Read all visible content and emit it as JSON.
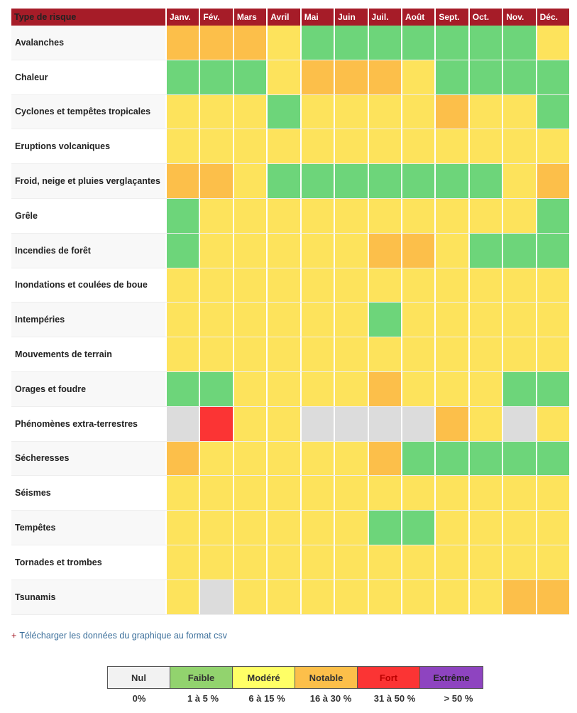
{
  "chart_data": {
    "type": "heatmap",
    "header_label": "Type de risque",
    "months": [
      "Janv.",
      "Fév.",
      "Mars",
      "Avril",
      "Mai",
      "Juin",
      "Juil.",
      "Août",
      "Sept.",
      "Oct.",
      "Nov.",
      "Déc."
    ],
    "levels": {
      "N": {
        "label": "Nul",
        "range": "0%",
        "color": "#dcdcdc"
      },
      "G": {
        "label": "Faible",
        "range": "1 à 5 %",
        "color": "#6dd57a"
      },
      "Y": {
        "label": "Modéré",
        "range": "6 à 15 %",
        "color": "#fde35c"
      },
      "O": {
        "label": "Notable",
        "range": "16 à 30 %",
        "color": "#fcbf4a"
      },
      "R": {
        "label": "Fort",
        "range": "31 à 50 %",
        "color": "#fb3434"
      },
      "X": {
        "label": "Extrême",
        "range": "> 50 %",
        "color": "#8e44c0"
      }
    },
    "rows": [
      {
        "name": "Avalanches",
        "values": [
          "O",
          "O",
          "O",
          "Y",
          "G",
          "G",
          "G",
          "G",
          "G",
          "G",
          "G",
          "Y"
        ]
      },
      {
        "name": "Chaleur",
        "values": [
          "G",
          "G",
          "G",
          "Y",
          "O",
          "O",
          "O",
          "Y",
          "G",
          "G",
          "G",
          "G"
        ]
      },
      {
        "name": "Cyclones et tempêtes tropicales",
        "values": [
          "Y",
          "Y",
          "Y",
          "G",
          "Y",
          "Y",
          "Y",
          "Y",
          "O",
          "Y",
          "Y",
          "G"
        ]
      },
      {
        "name": "Eruptions volcaniques",
        "values": [
          "Y",
          "Y",
          "Y",
          "Y",
          "Y",
          "Y",
          "Y",
          "Y",
          "Y",
          "Y",
          "Y",
          "Y"
        ]
      },
      {
        "name": "Froid, neige et pluies verglaçantes",
        "values": [
          "O",
          "O",
          "Y",
          "G",
          "G",
          "G",
          "G",
          "G",
          "G",
          "G",
          "Y",
          "O"
        ]
      },
      {
        "name": "Grêle",
        "values": [
          "G",
          "Y",
          "Y",
          "Y",
          "Y",
          "Y",
          "Y",
          "Y",
          "Y",
          "Y",
          "Y",
          "G"
        ]
      },
      {
        "name": "Incendies de forêt",
        "values": [
          "G",
          "Y",
          "Y",
          "Y",
          "Y",
          "Y",
          "O",
          "O",
          "Y",
          "G",
          "G",
          "G"
        ]
      },
      {
        "name": "Inondations et coulées de boue",
        "values": [
          "Y",
          "Y",
          "Y",
          "Y",
          "Y",
          "Y",
          "Y",
          "Y",
          "Y",
          "Y",
          "Y",
          "Y"
        ]
      },
      {
        "name": "Intempéries",
        "values": [
          "Y",
          "Y",
          "Y",
          "Y",
          "Y",
          "Y",
          "G",
          "Y",
          "Y",
          "Y",
          "Y",
          "Y"
        ]
      },
      {
        "name": "Mouvements de terrain",
        "values": [
          "Y",
          "Y",
          "Y",
          "Y",
          "Y",
          "Y",
          "Y",
          "Y",
          "Y",
          "Y",
          "Y",
          "Y"
        ]
      },
      {
        "name": "Orages et foudre",
        "values": [
          "G",
          "G",
          "Y",
          "Y",
          "Y",
          "Y",
          "O",
          "Y",
          "Y",
          "Y",
          "G",
          "G"
        ]
      },
      {
        "name": "Phénomènes extra-terrestres",
        "values": [
          "N",
          "R",
          "Y",
          "Y",
          "N",
          "N",
          "N",
          "N",
          "O",
          "Y",
          "N",
          "Y"
        ]
      },
      {
        "name": "Sécheresses",
        "values": [
          "O",
          "Y",
          "Y",
          "Y",
          "Y",
          "Y",
          "O",
          "G",
          "G",
          "G",
          "G",
          "G"
        ]
      },
      {
        "name": "Séismes",
        "values": [
          "Y",
          "Y",
          "Y",
          "Y",
          "Y",
          "Y",
          "Y",
          "Y",
          "Y",
          "Y",
          "Y",
          "Y"
        ]
      },
      {
        "name": "Tempêtes",
        "values": [
          "Y",
          "Y",
          "Y",
          "Y",
          "Y",
          "Y",
          "G",
          "G",
          "Y",
          "Y",
          "Y",
          "Y"
        ]
      },
      {
        "name": "Tornades et trombes",
        "values": [
          "Y",
          "Y",
          "Y",
          "Y",
          "Y",
          "Y",
          "Y",
          "Y",
          "Y",
          "Y",
          "Y",
          "Y"
        ]
      },
      {
        "name": "Tsunamis",
        "values": [
          "Y",
          "N",
          "Y",
          "Y",
          "Y",
          "Y",
          "Y",
          "Y",
          "Y",
          "Y",
          "O",
          "O"
        ]
      }
    ],
    "legend_order": [
      "N",
      "G",
      "Y",
      "O",
      "R",
      "X"
    ]
  },
  "csv_link": {
    "plus": "+",
    "label": "Télécharger les données du graphique au format csv"
  }
}
